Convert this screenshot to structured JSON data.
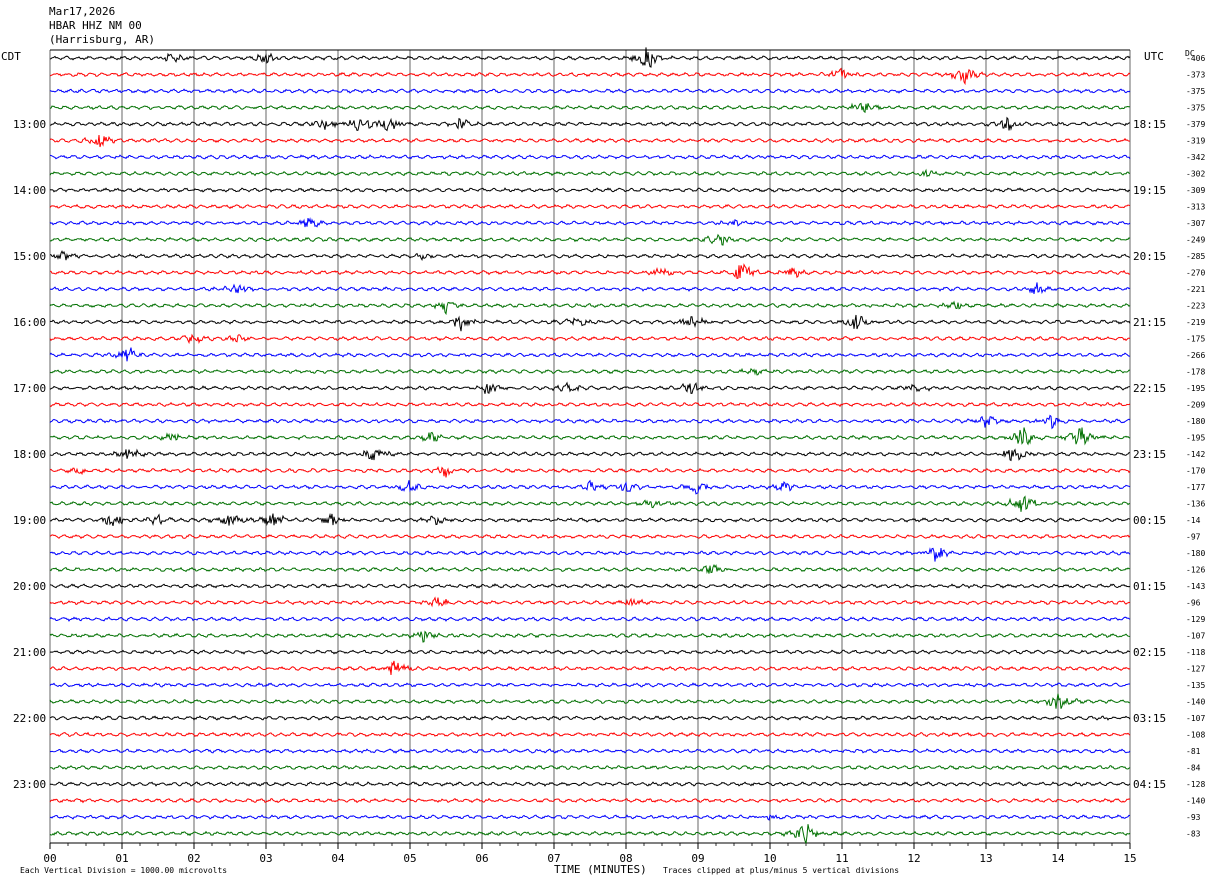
{
  "header": {
    "date": "Mar17,2026",
    "station": "HBAR HHZ NM 00",
    "location": "(Harrisburg, AR)"
  },
  "left_timezone": "CDT",
  "right_timezone": "UTC",
  "dc_label": "DC",
  "footer": {
    "scale_note": "Each Vertical Division = 1000.00 microvolts",
    "xlabel": "TIME (MINUTES)",
    "clip_note": "Traces clipped at plus/minus 5 vertical divisions"
  },
  "chart_data": {
    "type": "line",
    "title": "",
    "xlabel": "TIME (MINUTES)",
    "x_range": [
      0,
      15
    ],
    "x_ticks": [
      "00",
      "01",
      "02",
      "03",
      "04",
      "05",
      "06",
      "07",
      "08",
      "09",
      "10",
      "11",
      "12",
      "13",
      "14",
      "15"
    ],
    "rows_per_hour": 4,
    "trace_colors": [
      "#000000",
      "#ff0000",
      "#0000ff",
      "#007000"
    ],
    "left_hour_labels": [
      "13:00",
      "14:00",
      "15:00",
      "16:00",
      "17:00",
      "18:00",
      "19:00",
      "20:00",
      "21:00",
      "22:00",
      "23:00"
    ],
    "left_hour_first_row": 4,
    "right_hour_labels": [
      "18:15",
      "19:15",
      "20:15",
      "21:15",
      "22:15",
      "23:15",
      "00:15",
      "01:15",
      "02:15",
      "03:15",
      "04:15"
    ],
    "right_hour_first_row": 4,
    "dc_offsets": [
      -406,
      -373,
      -375,
      -375,
      -379,
      -319,
      -342,
      -302,
      -309,
      -313,
      -307,
      -249,
      -285,
      -270,
      -221,
      -223,
      -219,
      -175,
      -266,
      -178,
      -195,
      -209,
      -180,
      -195,
      -142,
      -170,
      -177,
      -136,
      -14,
      -97,
      -180,
      -126,
      -143,
      -96,
      -129,
      -107,
      -118,
      -127,
      -135,
      -140,
      -107,
      -108,
      -81,
      -84,
      -128,
      -140,
      -93,
      -83
    ],
    "grid": true,
    "events": [
      {
        "row": 0,
        "minute": 1.7,
        "amp": 6
      },
      {
        "row": 0,
        "minute": 3.0,
        "amp": 7
      },
      {
        "row": 0,
        "minute": 8.3,
        "amp": 14
      },
      {
        "row": 1,
        "minute": 11.0,
        "amp": 8
      },
      {
        "row": 1,
        "minute": 12.7,
        "amp": 10
      },
      {
        "row": 3,
        "minute": 11.3,
        "amp": 7
      },
      {
        "row": 4,
        "minute": 3.8,
        "amp": 7
      },
      {
        "row": 4,
        "minute": 4.3,
        "amp": 10
      },
      {
        "row": 4,
        "minute": 4.7,
        "amp": 9
      },
      {
        "row": 4,
        "minute": 5.7,
        "amp": 7
      },
      {
        "row": 4,
        "minute": 13.3,
        "amp": 9
      },
      {
        "row": 5,
        "minute": 0.7,
        "amp": 8
      },
      {
        "row": 7,
        "minute": 12.2,
        "amp": 4
      },
      {
        "row": 10,
        "minute": 3.6,
        "amp": 6
      },
      {
        "row": 10,
        "minute": 9.5,
        "amp": 4
      },
      {
        "row": 11,
        "minute": 9.3,
        "amp": 8
      },
      {
        "row": 12,
        "minute": 0.2,
        "amp": 5
      },
      {
        "row": 12,
        "minute": 5.2,
        "amp": 4
      },
      {
        "row": 13,
        "minute": 8.5,
        "amp": 7
      },
      {
        "row": 13,
        "minute": 9.6,
        "amp": 12
      },
      {
        "row": 13,
        "minute": 10.3,
        "amp": 6
      },
      {
        "row": 14,
        "minute": 2.6,
        "amp": 6
      },
      {
        "row": 14,
        "minute": 13.7,
        "amp": 6
      },
      {
        "row": 15,
        "minute": 5.5,
        "amp": 7
      },
      {
        "row": 15,
        "minute": 12.6,
        "amp": 5
      },
      {
        "row": 16,
        "minute": 5.7,
        "amp": 10
      },
      {
        "row": 16,
        "minute": 7.3,
        "amp": 6
      },
      {
        "row": 16,
        "minute": 8.9,
        "amp": 8
      },
      {
        "row": 16,
        "minute": 11.2,
        "amp": 9
      },
      {
        "row": 17,
        "minute": 2.0,
        "amp": 5
      },
      {
        "row": 17,
        "minute": 2.6,
        "amp": 4
      },
      {
        "row": 18,
        "minute": 1.1,
        "amp": 9
      },
      {
        "row": 19,
        "minute": 9.8,
        "amp": 4
      },
      {
        "row": 20,
        "minute": 6.1,
        "amp": 8
      },
      {
        "row": 20,
        "minute": 7.2,
        "amp": 6
      },
      {
        "row": 20,
        "minute": 8.9,
        "amp": 7
      },
      {
        "row": 20,
        "minute": 12.0,
        "amp": 5
      },
      {
        "row": 22,
        "minute": 13.0,
        "amp": 7
      },
      {
        "row": 22,
        "minute": 13.9,
        "amp": 8
      },
      {
        "row": 23,
        "minute": 1.7,
        "amp": 5
      },
      {
        "row": 23,
        "minute": 5.3,
        "amp": 6
      },
      {
        "row": 23,
        "minute": 13.5,
        "amp": 12
      },
      {
        "row": 23,
        "minute": 14.3,
        "amp": 15
      },
      {
        "row": 24,
        "minute": 1.1,
        "amp": 8
      },
      {
        "row": 24,
        "minute": 4.5,
        "amp": 9
      },
      {
        "row": 24,
        "minute": 13.4,
        "amp": 10
      },
      {
        "row": 25,
        "minute": 0.4,
        "amp": 5
      },
      {
        "row": 25,
        "minute": 5.5,
        "amp": 8
      },
      {
        "row": 26,
        "minute": 5.0,
        "amp": 7
      },
      {
        "row": 26,
        "minute": 7.5,
        "amp": 7
      },
      {
        "row": 26,
        "minute": 8.0,
        "amp": 7
      },
      {
        "row": 26,
        "minute": 9.0,
        "amp": 8
      },
      {
        "row": 26,
        "minute": 10.2,
        "amp": 6
      },
      {
        "row": 27,
        "minute": 8.4,
        "amp": 5
      },
      {
        "row": 27,
        "minute": 13.5,
        "amp": 11
      },
      {
        "row": 28,
        "minute": 0.9,
        "amp": 9
      },
      {
        "row": 28,
        "minute": 1.5,
        "amp": 6
      },
      {
        "row": 28,
        "minute": 2.5,
        "amp": 9
      },
      {
        "row": 28,
        "minute": 3.1,
        "amp": 8
      },
      {
        "row": 28,
        "minute": 3.9,
        "amp": 7
      },
      {
        "row": 28,
        "minute": 5.4,
        "amp": 6
      },
      {
        "row": 30,
        "minute": 12.3,
        "amp": 9
      },
      {
        "row": 31,
        "minute": 9.2,
        "amp": 6
      },
      {
        "row": 33,
        "minute": 5.4,
        "amp": 6
      },
      {
        "row": 33,
        "minute": 8.1,
        "amp": 5
      },
      {
        "row": 35,
        "minute": 5.2,
        "amp": 7
      },
      {
        "row": 37,
        "minute": 4.8,
        "amp": 10
      },
      {
        "row": 39,
        "minute": 14.0,
        "amp": 9
      },
      {
        "row": 46,
        "minute": 10.0,
        "amp": 3
      },
      {
        "row": 47,
        "minute": 10.5,
        "amp": 12
      }
    ]
  }
}
